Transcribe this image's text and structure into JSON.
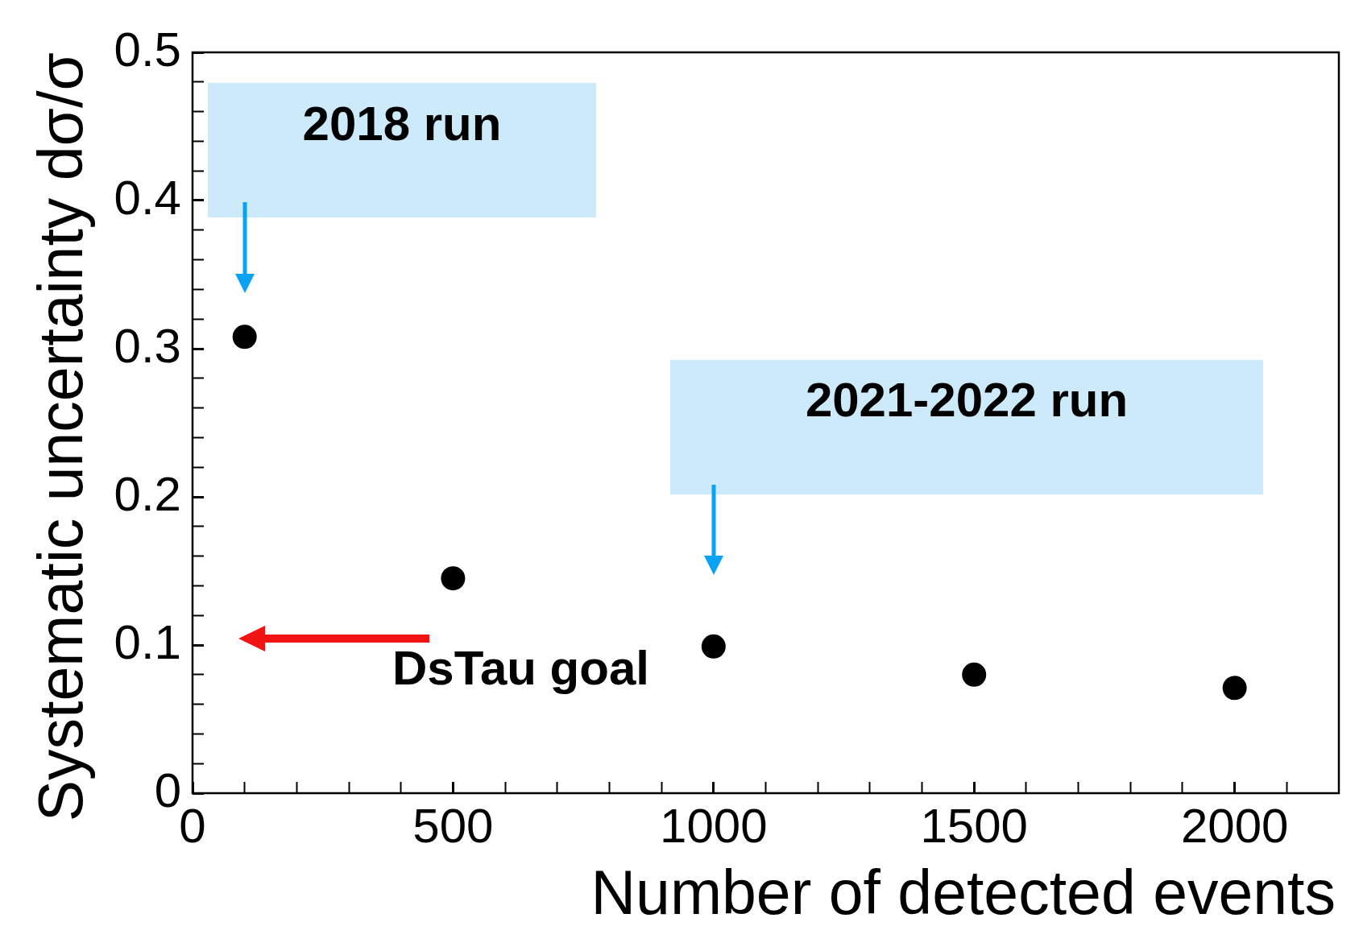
{
  "chart_data": {
    "type": "scatter",
    "xlabel": "Number of detected events",
    "ylabel": "Systematic uncertainty dσ/σ",
    "x": [
      100,
      500,
      1000,
      1500,
      2000
    ],
    "series": [
      {
        "color": "#000000",
        "values": [
          0.308,
          0.145,
          0.099,
          0.08,
          0.071
        ]
      }
    ],
    "xlim": [
      0,
      2200
    ],
    "ylim": [
      0,
      0.5
    ],
    "xticks": [
      0,
      {
        "value": 100,
        "label": null
      },
      {
        "value": 200,
        "label": null
      },
      {
        "value": 300,
        "label": null
      },
      {
        "value": 400,
        "label": null
      },
      500,
      {
        "value": 600,
        "label": null
      },
      {
        "value": 700,
        "label": null
      },
      {
        "value": 800,
        "label": null
      },
      {
        "value": 900,
        "label": null
      },
      1000,
      {
        "value": 1100,
        "label": null
      },
      {
        "value": 1200,
        "label": null
      },
      {
        "value": 1300,
        "label": null
      },
      {
        "value": 1400,
        "label": null
      },
      1500,
      {
        "value": 1600,
        "label": null
      },
      {
        "value": 1700,
        "label": null
      },
      {
        "value": 1800,
        "label": null
      },
      {
        "value": 1900,
        "label": null
      },
      2000,
      {
        "value": 2100,
        "label": null
      }
    ],
    "yticks": [
      0,
      {
        "value": 0.02,
        "label": null
      },
      {
        "value": 0.04,
        "label": null
      },
      {
        "value": 0.06,
        "label": null
      },
      {
        "value": 0.08,
        "label": null
      },
      0.1,
      {
        "value": 0.12,
        "label": null
      },
      {
        "value": 0.14,
        "label": null
      },
      {
        "value": 0.16,
        "label": null
      },
      {
        "value": 0.18,
        "label": null
      },
      0.2,
      {
        "value": 0.22,
        "label": null
      },
      {
        "value": 0.24,
        "label": null
      },
      {
        "value": 0.26,
        "label": null
      },
      {
        "value": 0.28,
        "label": null
      },
      0.3,
      {
        "value": 0.32,
        "label": null
      },
      {
        "value": 0.34,
        "label": null
      },
      {
        "value": 0.36,
        "label": null
      },
      {
        "value": 0.38,
        "label": null
      },
      0.4,
      {
        "value": 0.42,
        "label": null
      },
      {
        "value": 0.44,
        "label": null
      },
      {
        "value": 0.46,
        "label": null
      },
      {
        "value": 0.48,
        "label": null
      },
      0.5
    ],
    "marker": "circle",
    "grid": false,
    "legend": false,
    "annotations": [
      "2018 run",
      "2021-2022 run",
      "DsTau goal"
    ]
  }
}
